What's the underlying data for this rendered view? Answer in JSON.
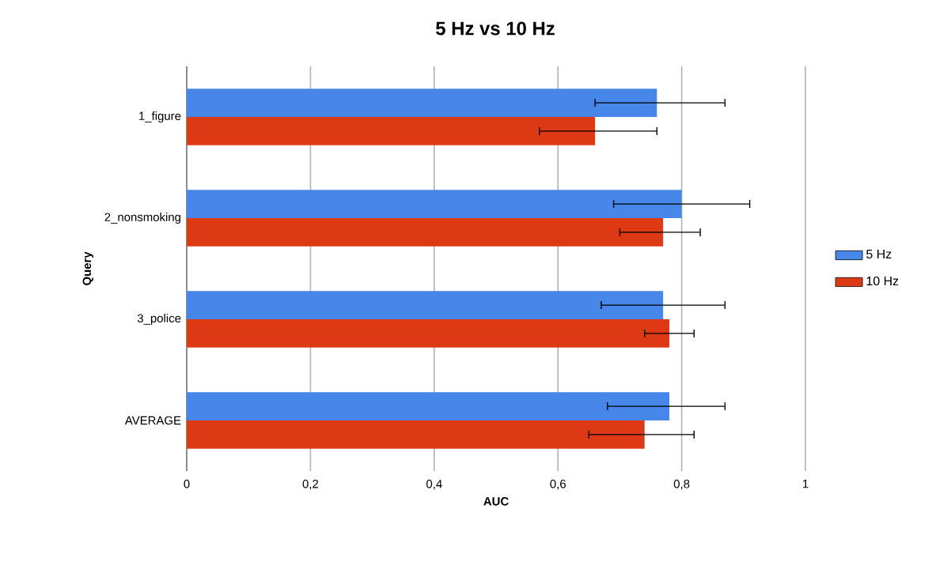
{
  "chart_data": {
    "type": "bar",
    "orientation": "horizontal",
    "title": "5 Hz vs 10 Hz",
    "xlabel": "AUC",
    "ylabel": "Query",
    "categories": [
      "1_figure",
      "2_nonsmoking",
      "3_police",
      "AVERAGE"
    ],
    "series": [
      {
        "name": "5 Hz",
        "color": "#4787ea",
        "values": [
          0.76,
          0.8,
          0.77,
          0.78
        ],
        "errors": [
          [
            0.66,
            0.87
          ],
          [
            0.69,
            0.91
          ],
          [
            0.67,
            0.87
          ],
          [
            0.68,
            0.87
          ]
        ]
      },
      {
        "name": "10 Hz",
        "color": "#dd3915",
        "values": [
          0.66,
          0.77,
          0.78,
          0.74
        ],
        "errors": [
          [
            0.57,
            0.76
          ],
          [
            0.7,
            0.83
          ],
          [
            0.74,
            0.82
          ],
          [
            0.65,
            0.82
          ]
        ]
      }
    ],
    "xlim": [
      0,
      1
    ],
    "xticks": [
      0,
      {
        "value": 0.2,
        "label": "0,2"
      },
      {
        "value": 0.4,
        "label": "0,4"
      },
      {
        "value": 0.6,
        "label": "0,6"
      },
      {
        "value": 0.8,
        "label": "0,8"
      },
      1
    ],
    "grid": "x",
    "legend": "right"
  }
}
